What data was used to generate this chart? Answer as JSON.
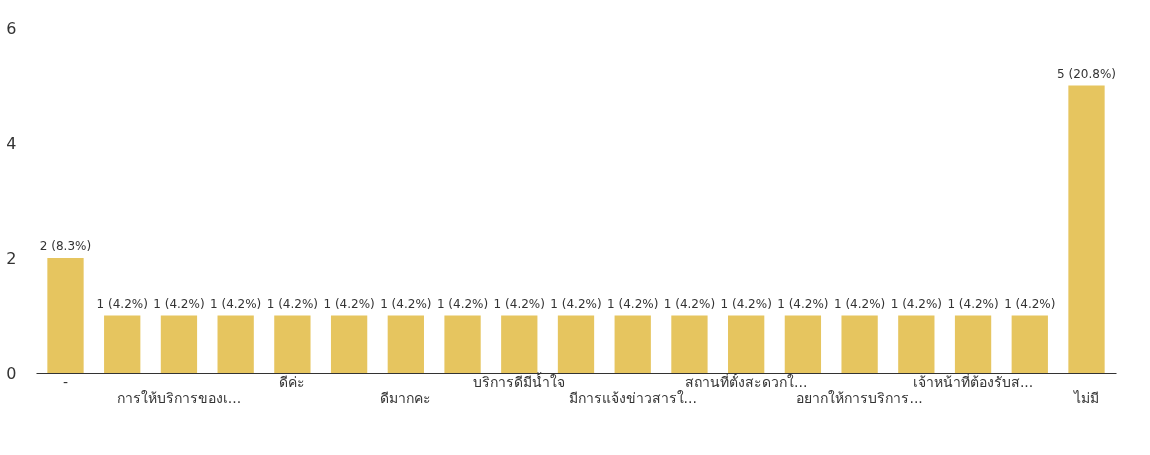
{
  "chart_data": {
    "type": "bar",
    "categories": [
      "-",
      null,
      "การให้บริการของเ...",
      null,
      "ดีค่ะ",
      null,
      "ดีมากคะ",
      null,
      "บริการดีมีน้ำใจ",
      null,
      "มีการแจ้งข่าวสารใ...",
      null,
      "สถานที่ตั้งสะดวกใ...",
      null,
      "อยากให้การบริการ...",
      null,
      "เจ้าหน้าที่ต้องรับส...",
      null,
      "ไม่มี"
    ],
    "values": [
      2,
      1,
      1,
      1,
      1,
      1,
      1,
      1,
      1,
      1,
      1,
      1,
      1,
      1,
      1,
      1,
      1,
      1,
      5
    ],
    "value_labels": [
      "2 (8.3%)",
      "1 (4.2%)",
      "1 (4.2%)",
      "1 (4.2%)",
      "1 (4.2%)",
      "1 (4.2%)",
      "1 (4.2%)",
      "1 (4.2%)",
      "1 (4.2%)",
      "1 (4.2%)",
      "1 (4.2%)",
      "1 (4.2%)",
      "1 (4.2%)",
      "1 (4.2%)",
      "1 (4.2%)",
      "1 (4.2%)",
      "1 (4.2%)",
      "1 (4.2%)",
      "5 (20.8%)"
    ],
    "color": "#e6c55f",
    "ylim": [
      0,
      6
    ],
    "yticks": [
      0,
      2,
      4,
      6
    ],
    "grid": false
  }
}
